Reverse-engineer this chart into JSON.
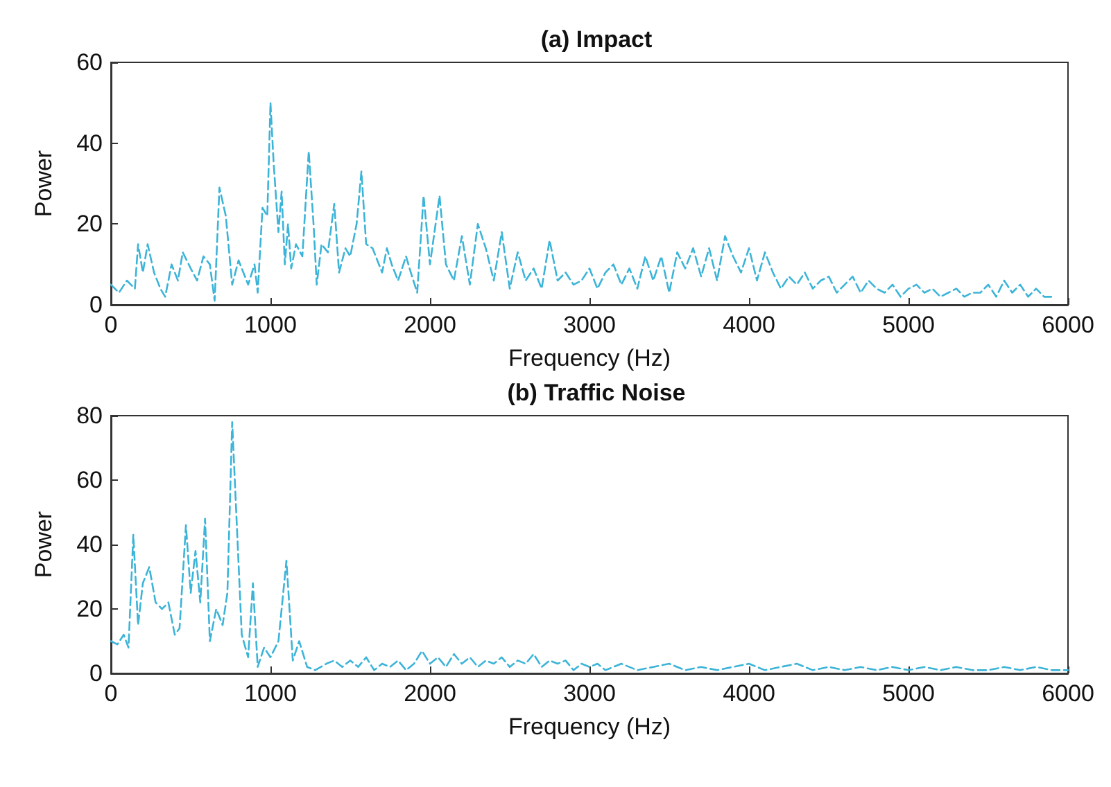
{
  "chart_data": [
    {
      "type": "line",
      "title": "(a) Impact",
      "xlabel": "Frequency (Hz)",
      "ylabel": "Power",
      "xlim": [
        0,
        6000
      ],
      "xticks": [
        0,
        1000,
        2000,
        3000,
        4000,
        5000,
        6000
      ],
      "ylim": [
        0,
        60
      ],
      "yticks": [
        0,
        20,
        40,
        60
      ],
      "grid": false,
      "marker": "none",
      "line_style": "dashed",
      "series": [
        {
          "color": "#3cb4d8",
          "x": [
            0,
            50,
            100,
            150,
            170,
            200,
            230,
            270,
            310,
            340,
            380,
            420,
            450,
            500,
            540,
            580,
            620,
            650,
            680,
            720,
            760,
            800,
            830,
            860,
            900,
            920,
            950,
            980,
            1000,
            1020,
            1050,
            1070,
            1090,
            1110,
            1130,
            1160,
            1200,
            1240,
            1270,
            1290,
            1320,
            1360,
            1400,
            1430,
            1470,
            1500,
            1540,
            1570,
            1600,
            1640,
            1700,
            1730,
            1760,
            1800,
            1850,
            1880,
            1920,
            1960,
            2000,
            2060,
            2100,
            2150,
            2200,
            2250,
            2300,
            2350,
            2400,
            2450,
            2500,
            2550,
            2600,
            2650,
            2700,
            2750,
            2800,
            2850,
            2900,
            2950,
            3000,
            3050,
            3100,
            3150,
            3200,
            3250,
            3300,
            3350,
            3400,
            3450,
            3500,
            3550,
            3600,
            3650,
            3700,
            3750,
            3800,
            3850,
            3900,
            3950,
            4000,
            4050,
            4100,
            4150,
            4200,
            4250,
            4300,
            4350,
            4400,
            4450,
            4500,
            4550,
            4600,
            4650,
            4700,
            4750,
            4800,
            4850,
            4900,
            4950,
            5000,
            5050,
            5100,
            5150,
            5200,
            5250,
            5300,
            5350,
            5400,
            5450,
            5500,
            5550,
            5600,
            5650,
            5700,
            5750,
            5800,
            5850,
            5900
          ],
          "values": [
            5,
            3,
            6,
            4,
            15,
            8,
            15,
            8,
            4,
            2,
            10,
            6,
            13,
            9,
            6,
            12,
            10,
            1,
            29,
            22,
            5,
            11,
            8,
            5,
            10,
            3,
            24,
            22,
            50,
            35,
            18,
            28,
            10,
            20,
            9,
            15,
            12,
            38,
            20,
            5,
            15,
            13,
            25,
            8,
            14,
            12,
            20,
            33,
            15,
            14,
            8,
            14,
            10,
            6,
            12,
            8,
            3,
            27,
            10,
            27,
            10,
            6,
            17,
            5,
            20,
            14,
            6,
            18,
            4,
            13,
            6,
            9,
            4,
            16,
            6,
            8,
            5,
            6,
            9,
            4,
            8,
            10,
            5,
            9,
            4,
            12,
            6,
            12,
            3,
            13,
            9,
            14,
            7,
            14,
            6,
            17,
            12,
            8,
            14,
            6,
            13,
            8,
            4,
            7,
            5,
            8,
            4,
            6,
            7,
            3,
            5,
            7,
            3,
            6,
            4,
            3,
            5,
            2,
            4,
            5,
            3,
            4,
            2,
            3,
            4,
            2,
            3,
            3,
            5,
            2,
            6,
            3,
            5,
            2,
            4,
            2,
            2
          ]
        }
      ]
    },
    {
      "type": "line",
      "title": "(b) Traffic Noise",
      "xlabel": "Frequency (Hz)",
      "ylabel": "Power",
      "xlim": [
        0,
        6000
      ],
      "xticks": [
        0,
        1000,
        2000,
        3000,
        4000,
        5000,
        6000
      ],
      "ylim": [
        0,
        80
      ],
      "yticks": [
        0,
        20,
        40,
        60,
        80
      ],
      "grid": false,
      "marker": "none",
      "line_style": "dashed",
      "series": [
        {
          "color": "#3cb4d8",
          "x": [
            0,
            40,
            80,
            110,
            140,
            170,
            200,
            240,
            280,
            320,
            360,
            400,
            430,
            470,
            500,
            530,
            560,
            590,
            620,
            660,
            700,
            730,
            760,
            790,
            820,
            860,
            890,
            920,
            960,
            1000,
            1050,
            1100,
            1140,
            1180,
            1230,
            1280,
            1350,
            1400,
            1450,
            1500,
            1550,
            1600,
            1650,
            1700,
            1750,
            1800,
            1850,
            1900,
            1950,
            2000,
            2050,
            2100,
            2150,
            2200,
            2250,
            2300,
            2350,
            2400,
            2450,
            2500,
            2550,
            2600,
            2650,
            2700,
            2750,
            2800,
            2850,
            2900,
            2950,
            3000,
            3050,
            3100,
            3150,
            3200,
            3300,
            3400,
            3500,
            3600,
            3700,
            3800,
            3900,
            4000,
            4100,
            4200,
            4300,
            4400,
            4500,
            4600,
            4700,
            4800,
            4900,
            5000,
            5100,
            5200,
            5300,
            5400,
            5500,
            5600,
            5700,
            5800,
            5900,
            6000
          ],
          "values": [
            10,
            9,
            12,
            8,
            43,
            15,
            28,
            33,
            22,
            20,
            22,
            12,
            14,
            46,
            25,
            38,
            22,
            48,
            10,
            20,
            15,
            25,
            78,
            45,
            12,
            5,
            28,
            2,
            8,
            5,
            10,
            35,
            4,
            10,
            2,
            1,
            3,
            4,
            2,
            4,
            2,
            5,
            1,
            3,
            2,
            4,
            1,
            3,
            7,
            3,
            5,
            2,
            6,
            3,
            5,
            2,
            4,
            3,
            5,
            2,
            4,
            3,
            6,
            2,
            4,
            3,
            4,
            1,
            3,
            2,
            3,
            1,
            2,
            3,
            1,
            2,
            3,
            1,
            2,
            1,
            2,
            3,
            1,
            2,
            3,
            1,
            2,
            1,
            2,
            1,
            2,
            1,
            2,
            1,
            2,
            1,
            1,
            2,
            1,
            2,
            1,
            1
          ]
        }
      ]
    }
  ]
}
